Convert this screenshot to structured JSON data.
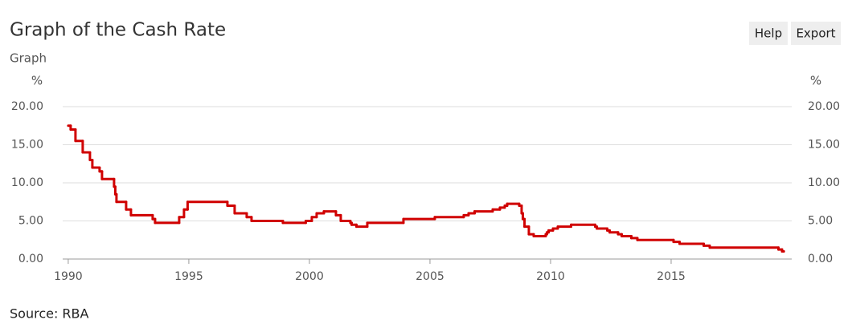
{
  "toolbar": [
    "Help",
    "Export"
  ],
  "chart_data": {
    "type": "line",
    "title": "Graph of the Cash Rate",
    "subtitle": "Graph",
    "source": "Source: RBA",
    "y_label": "%",
    "y2_label": "%",
    "color": "#d00000",
    "grid": true,
    "xlim": [
      1989.77,
      2020
    ],
    "xticks": [
      1990,
      1995,
      2000,
      2005,
      2010,
      2015
    ],
    "ylim": [
      0,
      20
    ],
    "yticks": [
      {
        "value": 0,
        "label": "0.00"
      },
      {
        "value": 5,
        "label": "5.00"
      },
      {
        "value": 10,
        "label": "10.00"
      },
      {
        "value": 15,
        "label": "15.00"
      },
      {
        "value": 20,
        "label": "20.00"
      }
    ],
    "y2lim": [
      0,
      20
    ],
    "y2ticks": [
      {
        "value": 0,
        "label": "0.00"
      },
      {
        "value": 5,
        "label": "5.00"
      },
      {
        "value": 10,
        "label": "10.00"
      },
      {
        "value": 15,
        "label": "15.00"
      },
      {
        "value": 20,
        "label": "20.00"
      }
    ],
    "x": [
      1990.0,
      1990.1,
      1990.3,
      1990.6,
      1990.9,
      1991.0,
      1991.3,
      1991.4,
      1991.9,
      1991.95,
      1992.0,
      1992.4,
      1992.6,
      1993.5,
      1993.6,
      1994.6,
      1994.8,
      1994.95,
      1996.6,
      1996.9,
      1997.4,
      1997.6,
      1998.9,
      1999.85,
      2000.1,
      2000.3,
      2000.6,
      2001.1,
      2001.3,
      2001.7,
      2001.75,
      2001.95,
      2002.4,
      2003.9,
      2005.2,
      2006.4,
      2006.6,
      2006.85,
      2007.6,
      2007.9,
      2008.1,
      2008.2,
      2008.7,
      2008.8,
      2008.85,
      2008.92,
      2009.1,
      2009.3,
      2009.8,
      2009.85,
      2009.92,
      2010.1,
      2010.3,
      2010.85,
      2011.85,
      2011.92,
      2012.35,
      2012.45,
      2012.8,
      2012.95,
      2013.35,
      2013.6,
      2015.1,
      2015.35,
      2016.35,
      2016.6,
      2019.45,
      2019.6,
      2019.67
    ],
    "values": [
      17.5,
      17.0,
      15.5,
      14.0,
      13.0,
      12.0,
      11.5,
      10.5,
      9.5,
      8.5,
      7.5,
      6.5,
      5.75,
      5.25,
      4.75,
      5.5,
      6.5,
      7.5,
      7.0,
      6.0,
      5.5,
      5.0,
      4.75,
      5.0,
      5.5,
      6.0,
      6.25,
      5.75,
      5.0,
      4.75,
      4.5,
      4.25,
      4.75,
      5.25,
      5.5,
      5.75,
      6.0,
      6.25,
      6.5,
      6.75,
      7.0,
      7.25,
      7.0,
      6.0,
      5.25,
      4.25,
      3.25,
      3.0,
      3.25,
      3.5,
      3.75,
      4.0,
      4.25,
      4.5,
      4.25,
      4.0,
      3.75,
      3.5,
      3.25,
      3.0,
      2.75,
      2.5,
      2.25,
      2.0,
      1.75,
      1.5,
      1.25,
      1.0,
      1.0
    ]
  }
}
